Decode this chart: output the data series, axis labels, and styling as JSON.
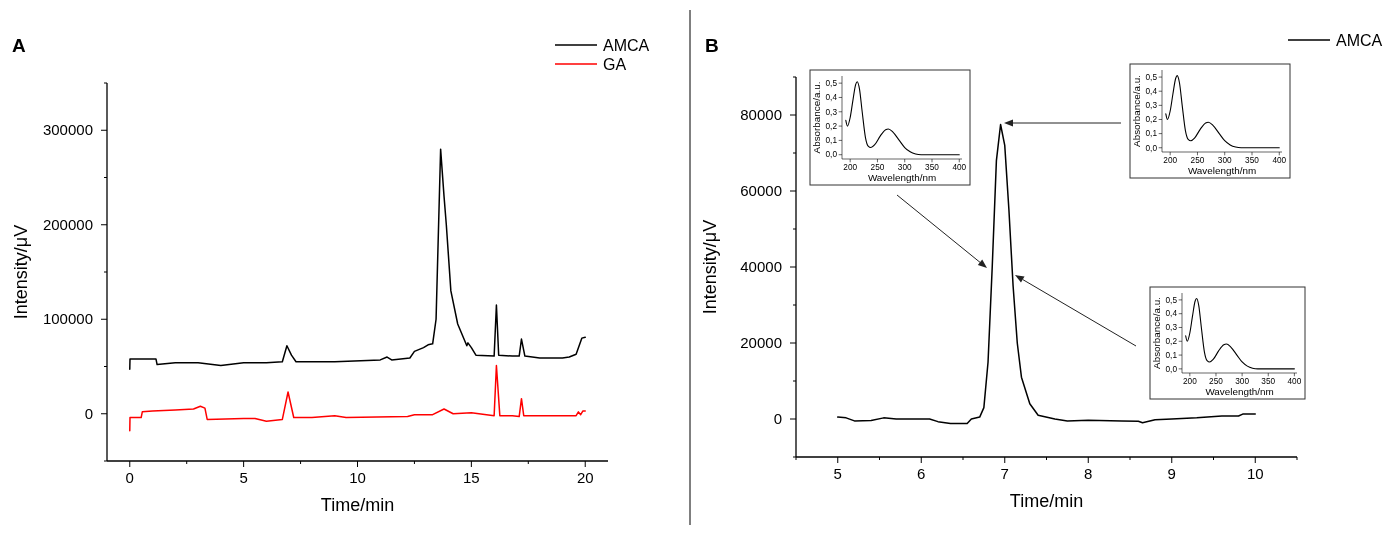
{
  "chart_data": [
    {
      "type": "line",
      "title": "A",
      "xlabel": "Time/min",
      "ylabel": "Intensity/μV",
      "xlim": [
        -1,
        21
      ],
      "ylim": [
        -50000,
        350000
      ],
      "xticks": [
        0,
        {
          "value": 2.5,
          "label": null
        },
        5,
        {
          "value": 7.5,
          "label": null
        },
        10,
        {
          "value": 12.5,
          "label": null
        },
        15,
        {
          "value": 17.5,
          "label": null
        },
        20
      ],
      "yticks": [
        {
          "value": -50000,
          "label": null
        },
        0,
        {
          "value": 50000,
          "label": null
        },
        100000,
        {
          "value": 150000,
          "label": null
        },
        200000,
        {
          "value": 250000,
          "label": null
        },
        300000,
        {
          "value": 350000,
          "label": null
        }
      ],
      "grid": false,
      "legend": "top right",
      "marker": "none",
      "line_style": "solid",
      "series": [
        {
          "name": "AMCA",
          "color": "#000000",
          "x": [
            0,
            0.01,
            1.15,
            1.2,
            2,
            3,
            4,
            5,
            6,
            6.7,
            6.9,
            7.1,
            7.3,
            9,
            11,
            11.3,
            11.5,
            12.3,
            12.5,
            12.9,
            13.1,
            13.3,
            13.45,
            13.65,
            13.8,
            13.9,
            14.1,
            14.4,
            14.8,
            14.85,
            15,
            15.2,
            16,
            16.1,
            16.2,
            16.8,
            17.1,
            17.2,
            17.35,
            18,
            19,
            19.3,
            19.6,
            19.85,
            20
          ],
          "values": [
            47000,
            58000,
            58000,
            52000,
            54000,
            54000,
            51000,
            54000,
            54000,
            55000,
            72000,
            62000,
            55000,
            55000,
            57000,
            60000,
            57000,
            59000,
            66000,
            70000,
            73000,
            74000,
            100000,
            280000,
            230000,
            200000,
            130000,
            95000,
            72000,
            75000,
            70000,
            62000,
            61000,
            115000,
            62000,
            61000,
            61000,
            79000,
            61000,
            59000,
            59000,
            60000,
            63000,
            80000,
            81000
          ]
        },
        {
          "name": "GA",
          "color": "#ff0000",
          "x": [
            0,
            0.01,
            0.5,
            0.55,
            1,
            2,
            2.8,
            3.1,
            3.3,
            3.4,
            5,
            5.5,
            6,
            6.7,
            6.95,
            7.2,
            8,
            9,
            9.5,
            12.2,
            12.5,
            13.3,
            13.8,
            14.2,
            15,
            16,
            16.1,
            16.25,
            16.8,
            17.1,
            17.2,
            17.3,
            19.6,
            19.7,
            19.8,
            19.9,
            20
          ],
          "values": [
            -18000,
            -4000,
            -4000,
            2000,
            3000,
            4000,
            5000,
            8000,
            6000,
            -6000,
            -5000,
            -5000,
            -8000,
            -6000,
            23000,
            -4000,
            -4000,
            -2000,
            -4000,
            -3000,
            -1000,
            -1000,
            5000,
            0,
            1000,
            -2000,
            51000,
            -2000,
            -2000,
            -3000,
            16000,
            -2000,
            -2000,
            2000,
            -1000,
            3000,
            3000
          ]
        }
      ]
    },
    {
      "type": "line",
      "title": "B",
      "xlabel": "Time/min",
      "ylabel": "Intensity/μV",
      "xlim": [
        4.5,
        10.5
      ],
      "ylim": [
        -10000,
        90000
      ],
      "xticks": [
        {
          "value": 4.5,
          "label": null
        },
        5,
        {
          "value": 5.5,
          "label": null
        },
        6,
        {
          "value": 6.5,
          "label": null
        },
        7,
        {
          "value": 7.5,
          "label": null
        },
        8,
        {
          "value": 8.5,
          "label": null
        },
        9,
        {
          "value": 9.5,
          "label": null
        },
        10,
        {
          "value": 10.5,
          "label": null
        }
      ],
      "yticks": [
        {
          "value": -10000,
          "label": null
        },
        0,
        {
          "value": 10000,
          "label": null
        },
        20000,
        {
          "value": 30000,
          "label": null
        },
        40000,
        {
          "value": 50000,
          "label": null
        },
        60000,
        {
          "value": 70000,
          "label": null
        },
        80000,
        {
          "value": 90000,
          "label": null
        }
      ],
      "grid": false,
      "legend": "top right",
      "marker": "none",
      "line_style": "solid",
      "series": [
        {
          "name": "AMCA",
          "color": "#000000",
          "x": [
            5,
            5.1,
            5.2,
            5.4,
            5.55,
            5.7,
            6.1,
            6.2,
            6.35,
            6.55,
            6.6,
            6.7,
            6.75,
            6.8,
            6.85,
            6.9,
            6.95,
            7,
            7.05,
            7.1,
            7.15,
            7.2,
            7.3,
            7.4,
            7.6,
            7.75,
            8,
            8.4,
            8.6,
            8.65,
            8.8,
            9,
            9.3,
            9.6,
            9.8,
            9.85,
            10
          ],
          "values": [
            500,
            300,
            -500,
            -400,
            300,
            0,
            0,
            -700,
            -1200,
            -1200,
            0,
            500,
            3000,
            15000,
            40000,
            68000,
            77500,
            72000,
            55000,
            35000,
            20000,
            11000,
            4000,
            1000,
            0,
            -500,
            -300,
            -500,
            -600,
            -1000,
            -200,
            0,
            300,
            800,
            800,
            1300,
            1300
          ]
        }
      ]
    },
    {
      "type": "line",
      "xlabel": "Wavelength/nm",
      "ylabel": "Absorbance/a.u.",
      "xlim": [
        185,
        405
      ],
      "ylim": [
        -0.03,
        0.55
      ],
      "xticks": [
        200,
        250,
        300,
        350,
        400
      ],
      "yticks": [
        {
          "value": 0,
          "label": "0,0"
        },
        {
          "value": 0.1,
          "label": "0,1"
        },
        {
          "value": 0.2,
          "label": "0,2"
        },
        {
          "value": 0.3,
          "label": "0,3"
        },
        {
          "value": 0.4,
          "label": "0,4"
        },
        {
          "value": 0.5,
          "label": "0,5"
        }
      ],
      "grid": false,
      "marker": "none",
      "line_style": "solid",
      "series": [
        {
          "color": "#000000",
          "x": [
            192,
            195,
            200,
            205,
            210,
            213,
            217,
            222,
            228,
            233,
            238,
            245,
            255,
            265,
            270,
            278,
            290,
            300,
            310,
            320,
            330,
            400
          ],
          "values": [
            0.24,
            0.2,
            0.26,
            0.38,
            0.49,
            0.51,
            0.46,
            0.3,
            0.12,
            0.06,
            0.05,
            0.07,
            0.13,
            0.175,
            0.18,
            0.16,
            0.1,
            0.05,
            0.02,
            0.005,
            0,
            0
          ]
        }
      ]
    },
    {
      "type": "line",
      "xlabel": "Wavelength/nm",
      "ylabel": "Absorbance/a.u.",
      "xlim": [
        185,
        405
      ],
      "ylim": [
        -0.03,
        0.55
      ],
      "xticks": [
        200,
        250,
        300,
        350,
        400
      ],
      "yticks": [
        {
          "value": 0,
          "label": "0,0"
        },
        {
          "value": 0.1,
          "label": "0,1"
        },
        {
          "value": 0.2,
          "label": "0,2"
        },
        {
          "value": 0.3,
          "label": "0,3"
        },
        {
          "value": 0.4,
          "label": "0,4"
        },
        {
          "value": 0.5,
          "label": "0,5"
        }
      ],
      "grid": false,
      "marker": "none",
      "line_style": "solid",
      "series": [
        {
          "color": "#000000",
          "x": [
            192,
            195,
            200,
            205,
            210,
            213,
            217,
            222,
            228,
            233,
            238,
            245,
            255,
            265,
            270,
            278,
            290,
            300,
            310,
            320,
            330,
            400
          ],
          "values": [
            0.24,
            0.2,
            0.26,
            0.38,
            0.49,
            0.51,
            0.46,
            0.3,
            0.12,
            0.06,
            0.05,
            0.07,
            0.13,
            0.175,
            0.18,
            0.16,
            0.1,
            0.05,
            0.02,
            0.005,
            0,
            0
          ]
        }
      ]
    },
    {
      "type": "line",
      "xlabel": "Wavelength/nm",
      "ylabel": "Absorbance/a.u.",
      "xlim": [
        185,
        405
      ],
      "ylim": [
        -0.03,
        0.55
      ],
      "xticks": [
        200,
        250,
        300,
        350,
        400
      ],
      "yticks": [
        {
          "value": 0,
          "label": "0,0"
        },
        {
          "value": 0.1,
          "label": "0,1"
        },
        {
          "value": 0.2,
          "label": "0,2"
        },
        {
          "value": 0.3,
          "label": "0,3"
        },
        {
          "value": 0.4,
          "label": "0,4"
        },
        {
          "value": 0.5,
          "label": "0,5"
        }
      ],
      "grid": false,
      "marker": "none",
      "line_style": "solid",
      "series": [
        {
          "color": "#000000",
          "x": [
            192,
            195,
            200,
            205,
            210,
            213,
            217,
            222,
            228,
            233,
            238,
            245,
            255,
            265,
            270,
            278,
            290,
            300,
            310,
            320,
            330,
            400
          ],
          "values": [
            0.24,
            0.2,
            0.26,
            0.38,
            0.49,
            0.51,
            0.46,
            0.3,
            0.12,
            0.06,
            0.05,
            0.07,
            0.13,
            0.175,
            0.18,
            0.16,
            0.1,
            0.05,
            0.02,
            0.005,
            0,
            0
          ]
        }
      ]
    }
  ]
}
